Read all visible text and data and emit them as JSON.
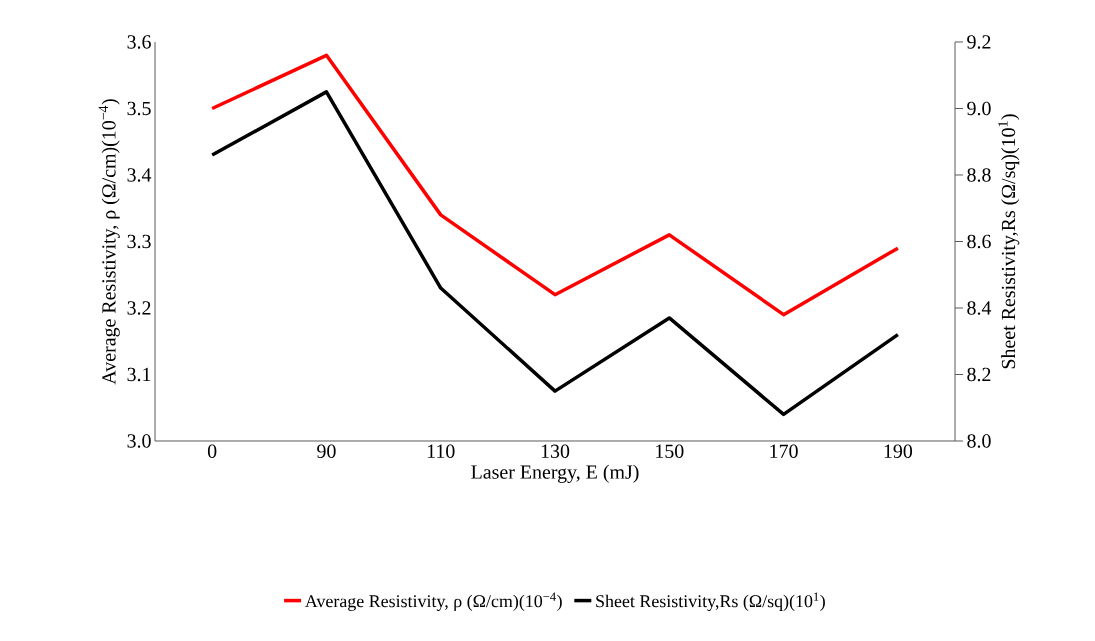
{
  "chart_data": {
    "type": "line",
    "xlabel": "Laser Energy, E (mJ)",
    "ylabel": "Average Resistivity, ρ (Ω/cm)(10$^{−4}$)",
    "y2label": "Sheet Resistivity,Rs (Ω/sq)(10$^{1}$)",
    "categories": [
      "0",
      "90",
      "110",
      "130",
      "150",
      "170",
      "190"
    ],
    "series": [
      {
        "name": "Average Resistivity, ρ (Ω/cm)(10$^{−4}$)",
        "color": "#ff0000",
        "values": [
          3.5,
          3.58,
          3.34,
          3.22,
          3.31,
          3.19,
          3.29
        ]
      },
      {
        "name": "Sheet Resistivity,Rs (Ω/sq)(10$^{1}$)",
        "color": "#000000",
        "axis": "y2",
        "values": [
          8.86,
          9.05,
          8.46,
          8.15,
          8.37,
          8.08,
          8.32
        ]
      }
    ],
    "ylim": [
      3.0,
      3.6
    ],
    "yticks": [
      {
        "value": 3.0,
        "label": "3.0"
      },
      {
        "value": 3.1,
        "label": "3.1"
      },
      {
        "value": 3.2,
        "label": "3.2"
      },
      {
        "value": 3.3,
        "label": "3.3"
      },
      {
        "value": 3.4,
        "label": "3.4"
      },
      {
        "value": 3.5,
        "label": "3.5"
      },
      {
        "value": 3.6,
        "label": "3.6"
      }
    ],
    "y2lim": [
      8.0,
      9.2
    ],
    "y2ticks": [
      {
        "value": 8.0,
        "label": "8.0"
      },
      {
        "value": 8.2,
        "label": "8.2"
      },
      {
        "value": 8.4,
        "label": "8.4"
      },
      {
        "value": 8.6,
        "label": "8.6"
      },
      {
        "value": 8.8,
        "label": "8.8"
      },
      {
        "value": 9.0,
        "label": "9.0"
      },
      {
        "value": 9.2,
        "label": "9.2"
      }
    ],
    "grid": false,
    "legend": "bottom",
    "marker": "none",
    "line_style": "solid"
  }
}
